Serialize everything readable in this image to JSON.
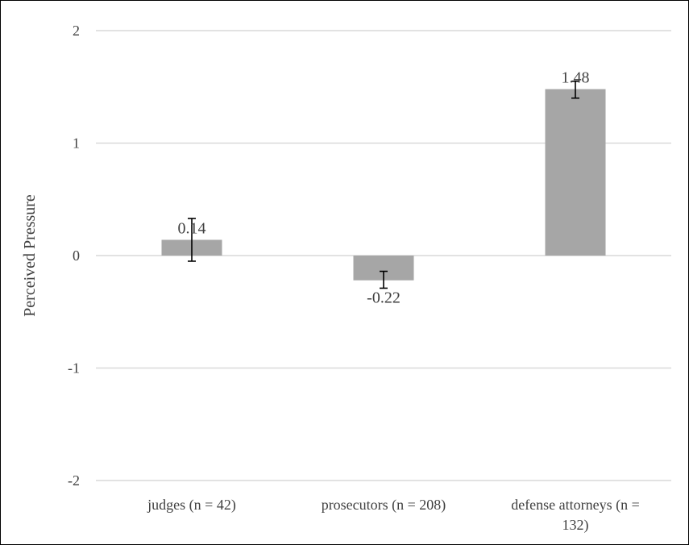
{
  "chart_data": {
    "type": "bar",
    "title": "",
    "xlabel": "",
    "ylabel": "Perceived Pressure",
    "ylim": [
      -2,
      2
    ],
    "yticks": [
      "2",
      "1",
      "0",
      "-1",
      "-2"
    ],
    "grid": true,
    "legend": "none",
    "categories": [
      [
        "judges (n = 42)"
      ],
      [
        "prosecutors (n = 208)"
      ],
      [
        "defense attorneys (n =",
        "132)"
      ]
    ],
    "values": [
      0.14,
      -0.22,
      1.48
    ],
    "value_labels": [
      "0.14",
      "-0.22",
      "1.48"
    ],
    "error_low": [
      -0.05,
      -0.29,
      1.4
    ],
    "error_high": [
      0.33,
      -0.14,
      1.55
    ],
    "bar_color": "#a6a6a6",
    "grid_color": "#d9d9d9",
    "text_color": "#404040"
  }
}
